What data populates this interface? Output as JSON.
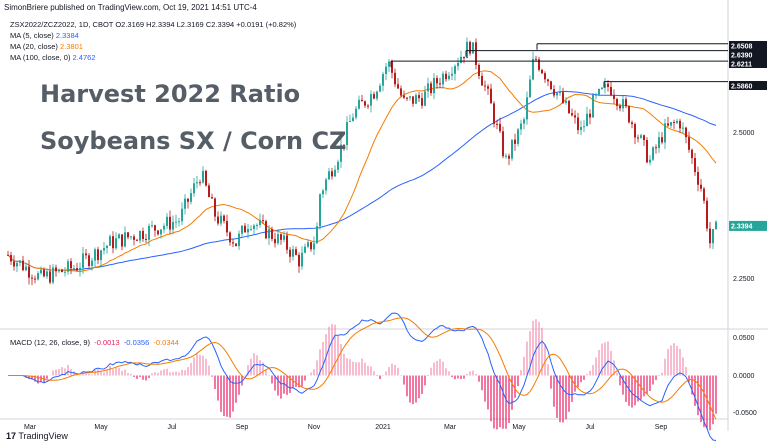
{
  "header": {
    "publisher_line": "SimonBriere published on TradingView.com, Oct 19, 2021 14:51 UTC-4",
    "symbol_line": "ZSX2022/ZCZ2022, 1D, CBOT  O2.3169  H2.3394  L2.3169  C2.3394  +0.0191 (+0.82%)"
  },
  "indicators": [
    {
      "label": "MA (5, close)",
      "value": "2.3384",
      "color": "#2962ff"
    },
    {
      "label": "MA (20, close)",
      "value": "2.3801",
      "color": "#f57c00"
    },
    {
      "label": "MA (100, close, 0)",
      "value": "2.4762",
      "color": "#2962ff"
    }
  ],
  "overlay_text": {
    "line1": "Harvest 2022 Ratio",
    "line2": "Soybeans SX / Corn CZ"
  },
  "macd": {
    "label": "MACD (12, 26, close, 9)",
    "hist": "-0.0013",
    "macd": "-0.0356",
    "signal": "-0.0344",
    "axis_labels": [
      "0.0500",
      "0.0000",
      "-0.0500"
    ]
  },
  "footer": {
    "logo_text": "TradingView"
  },
  "colors": {
    "up": "#26a69a",
    "down": "#b71c1c",
    "ma20": "#f57c00",
    "ma100": "#2962ff",
    "macd_hist": "#e91e63"
  },
  "chart_data": {
    "type": "line",
    "subtype": "candlestick",
    "title": "Harvest 2022 Ratio",
    "subtitle": "Soybeans SX / Corn CZ",
    "symbol": "ZSX2022/ZCZ2022",
    "x_tick_labels": [
      "Mar",
      "May",
      "Jul",
      "Sep",
      "Nov",
      "2021",
      "Mar",
      "May",
      "Jul",
      "Sep"
    ],
    "y_tick_labels": [
      "2.5000",
      "2.2500"
    ],
    "ylim": [
      2.17,
      2.7
    ],
    "price_tags": [
      "2.6508",
      "2.6390",
      "2.6211",
      "2.5860",
      "2.3394"
    ],
    "resistance_levels": [
      2.6508,
      2.639,
      2.6211,
      2.586
    ],
    "last_close": 2.3394,
    "price_series": [
      [
        "2020-02",
        2.29
      ],
      [
        "2020-03",
        2.25
      ],
      [
        "2020-04",
        2.27
      ],
      [
        "2020-05",
        2.31
      ],
      [
        "2020-06",
        2.33
      ],
      [
        "2020-07",
        2.35
      ],
      [
        "2020-07-20",
        2.43
      ],
      [
        "2020-08",
        2.36
      ],
      [
        "2020-08-20",
        2.31
      ],
      [
        "2020-09",
        2.35
      ],
      [
        "2020-10",
        2.31
      ],
      [
        "2020-10-15",
        2.28
      ],
      [
        "2020-10-30",
        2.32
      ],
      [
        "2020-11",
        2.39
      ],
      [
        "2020-11-20",
        2.47
      ],
      [
        "2020-12",
        2.53
      ],
      [
        "2020-12-20",
        2.57
      ],
      [
        "2021-01",
        2.62
      ],
      [
        "2021-01-15",
        2.55
      ],
      [
        "2021-02",
        2.56
      ],
      [
        "2021-02-20",
        2.6
      ],
      [
        "2021-03",
        2.62
      ],
      [
        "2021-03-15",
        2.65
      ],
      [
        "2021-04",
        2.55
      ],
      [
        "2021-04-15",
        2.45
      ],
      [
        "2021-05",
        2.52
      ],
      [
        "2021-05-10",
        2.63
      ],
      [
        "2021-06",
        2.56
      ],
      [
        "2021-06-20",
        2.5
      ],
      [
        "2021-07",
        2.55
      ],
      [
        "2021-07-15",
        2.58
      ],
      [
        "2021-08",
        2.53
      ],
      [
        "2021-08-20",
        2.45
      ],
      [
        "2021-09",
        2.5
      ],
      [
        "2021-09-15",
        2.52
      ],
      [
        "2021-10-05",
        2.4
      ],
      [
        "2021-10-12",
        2.31
      ],
      [
        "2021-10-19",
        2.34
      ]
    ],
    "macd_range": [
      -0.06,
      0.06
    ]
  }
}
